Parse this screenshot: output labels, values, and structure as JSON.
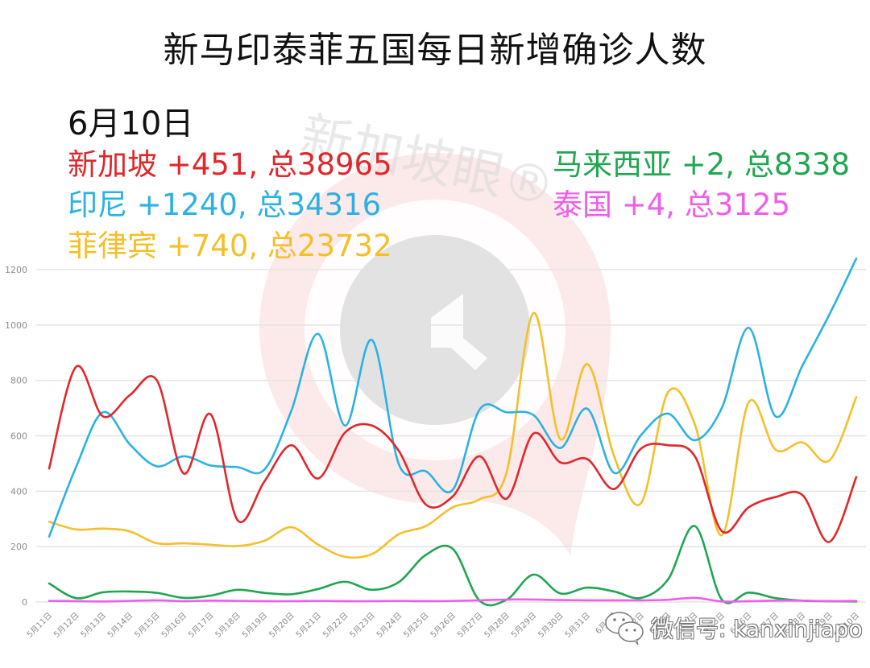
{
  "title": "新马印泰菲五国每日新增确诊人数",
  "date_label": "6月10日",
  "legend": [
    {
      "country": "新加坡",
      "text": "新加坡 +451, 总38965",
      "daily": 451,
      "total": 38965,
      "color": "#e0272b"
    },
    {
      "country": "印尼",
      "text": "印尼 +1240, 总34316",
      "daily": 1240,
      "total": 34316,
      "color": "#2bb1e3"
    },
    {
      "country": "菲律宾",
      "text": "菲律宾 +740, 总23732",
      "daily": 740,
      "total": 23732,
      "color": "#f5bf2a"
    },
    {
      "country": "马来西亚",
      "text": "马来西亚 +2, 总8338",
      "daily": 2,
      "total": 8338,
      "color": "#1fa650"
    },
    {
      "country": "泰国",
      "text": "泰国 +4, 总3125",
      "daily": 4,
      "total": 3125,
      "color": "#ee5ee8"
    }
  ],
  "watermark": {
    "brand": "新加坡眼®",
    "wechat": "微信号: kanxinjiapo"
  },
  "chart_data": {
    "type": "line",
    "title": "新马印泰菲五国每日新增确诊人数",
    "xlabel": "",
    "ylabel": "",
    "ylim": [
      0,
      1200
    ],
    "yticks": [
      0,
      200,
      400,
      600,
      800,
      1000,
      1200
    ],
    "grid": true,
    "legend_position": "top (text annotations)",
    "categories": [
      "5月11日",
      "5月12日",
      "5月13日",
      "5月14日",
      "5月15日",
      "5月16日",
      "5月17日",
      "5月18日",
      "5月19日",
      "5月20日",
      "5月21日",
      "5月22日",
      "5月23日",
      "5月24日",
      "5月25日",
      "5月26日",
      "5月27日",
      "5月28日",
      "5月29日",
      "5月30日",
      "5月31日",
      "6月1日",
      "6月2日",
      "6月3日",
      "6月4日",
      "6月5日",
      "6月6日",
      "6月7日",
      "6月8日",
      "6月9日",
      "6月10日"
    ],
    "series": [
      {
        "name": "新加坡",
        "color": "#e0272b",
        "values": [
          482,
          849,
          670,
          747,
          801,
          464,
          678,
          296,
          435,
          566,
          446,
          612,
          637,
          545,
          352,
          381,
          526,
          373,
          608,
          504,
          516,
          408,
          554,
          566,
          526,
          256,
          342,
          379,
          386,
          217,
          451
        ]
      },
      {
        "name": "印尼",
        "color": "#2bb1e3",
        "values": [
          236,
          487,
          685,
          569,
          490,
          526,
          493,
          487,
          478,
          690,
          968,
          637,
          946,
          497,
          472,
          405,
          695,
          685,
          675,
          556,
          698,
          466,
          603,
          680,
          584,
          700,
          990,
          670,
          854,
          1038,
          1240
        ]
      },
      {
        "name": "菲律宾",
        "color": "#f5bf2a",
        "values": [
          290,
          262,
          265,
          255,
          212,
          212,
          207,
          202,
          221,
          270,
          207,
          163,
          173,
          245,
          274,
          342,
          371,
          467,
          1043,
          588,
          859,
          526,
          357,
          757,
          641,
          241,
          721,
          550,
          576,
          511,
          740
        ]
      },
      {
        "name": "马来西亚",
        "color": "#1fa650",
        "values": [
          67,
          14,
          35,
          38,
          33,
          15,
          23,
          44,
          33,
          28,
          47,
          73,
          44,
          72,
          170,
          192,
          5,
          8,
          99,
          31,
          52,
          38,
          15,
          81,
          274,
          9,
          34,
          14,
          5,
          3,
          2
        ]
      },
      {
        "name": "泰国",
        "color": "#ee5ee8",
        "values": [
          4,
          3,
          2,
          4,
          6,
          3,
          5,
          4,
          3,
          3,
          4,
          3,
          3,
          4,
          3,
          4,
          6,
          9,
          9,
          7,
          6,
          6,
          6,
          8,
          15,
          2,
          3,
          5,
          5,
          3,
          4
        ]
      }
    ]
  }
}
